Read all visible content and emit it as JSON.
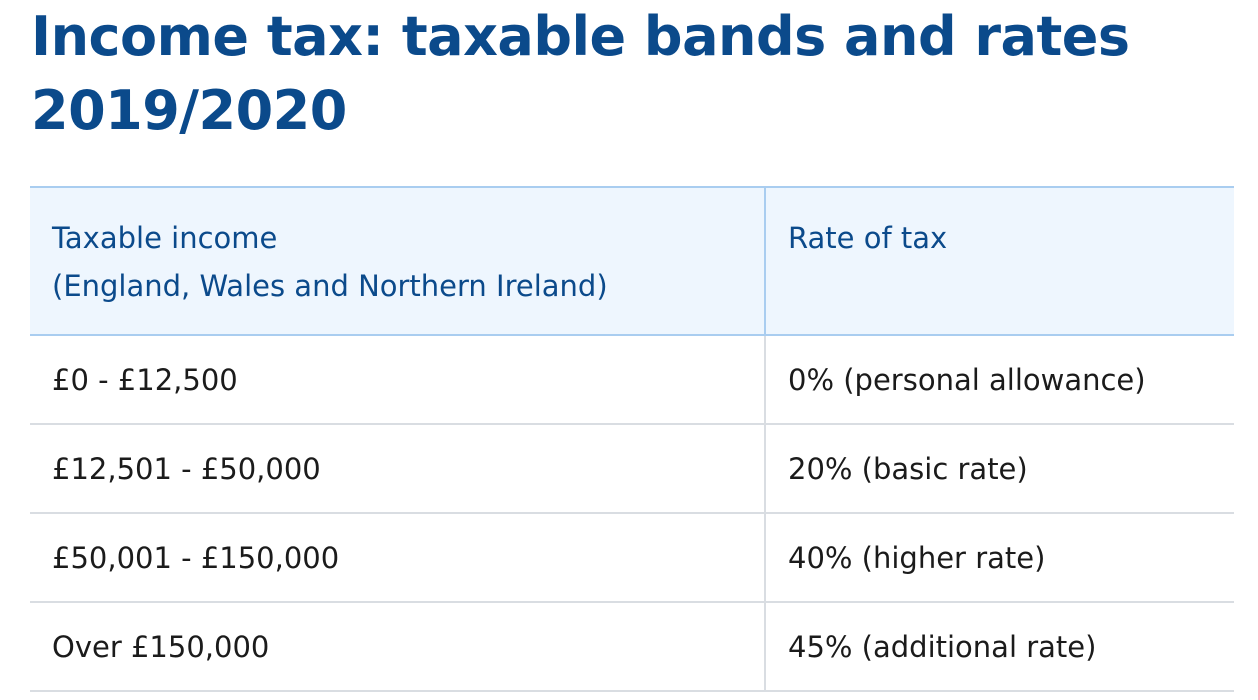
{
  "page": {
    "title": "Income tax: taxable bands and rates 2019/2020"
  },
  "table": {
    "headers": [
      {
        "line1": "Taxable income",
        "line2": "(England, Wales and Northern Ireland)"
      },
      {
        "line1": "Rate of tax",
        "line2": ""
      }
    ],
    "rows": [
      {
        "income": "£0 - £12,500",
        "rate": "0% (personal allowance)"
      },
      {
        "income": "£12,501 - £50,000",
        "rate": "20% (basic rate)"
      },
      {
        "income": "£50,001 - £150,000",
        "rate": "40% (higher rate)"
      },
      {
        "income": "Over £150,000",
        "rate": "45% (additional rate)"
      }
    ]
  },
  "colors": {
    "title": "#0b4a8b",
    "header_background": "#eef6fe",
    "header_border": "#a9cdf0",
    "row_border": "#d9dde2",
    "body_text": "#1b1b1b"
  }
}
